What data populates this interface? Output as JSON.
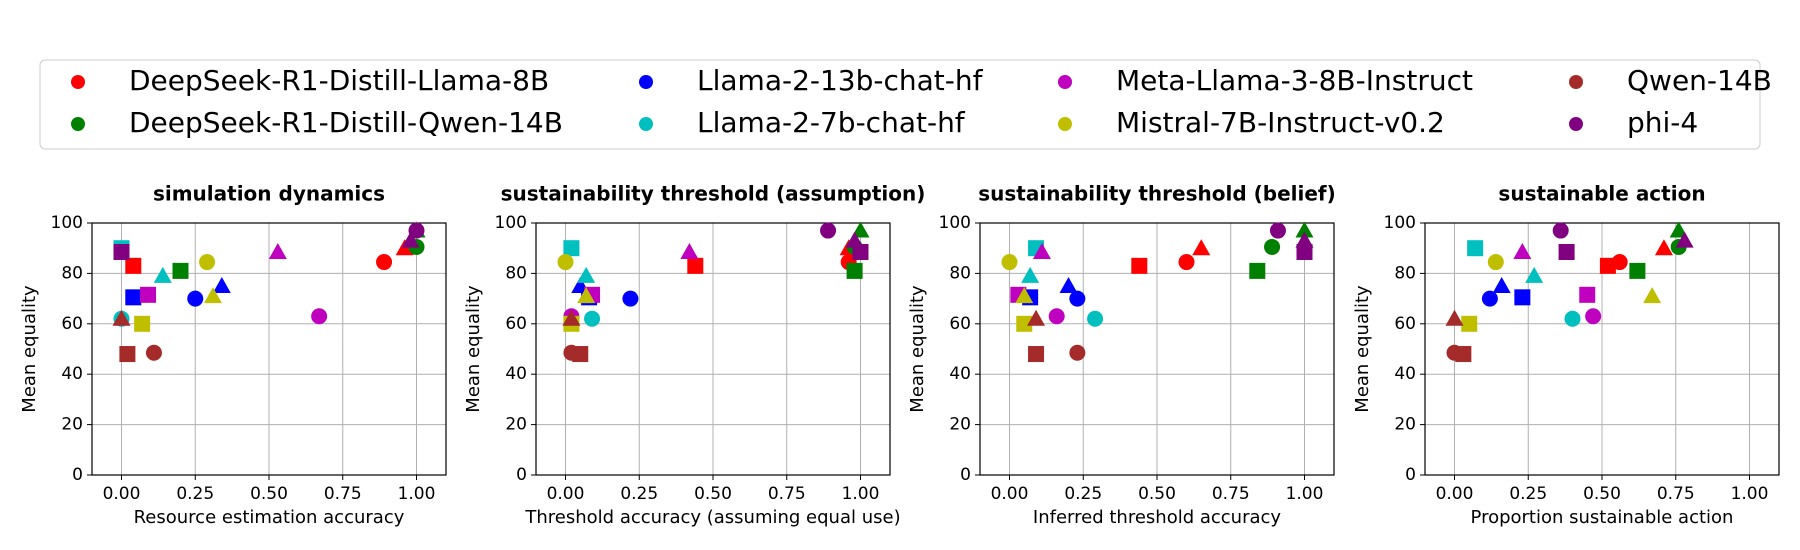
{
  "models": [
    {
      "name": "DeepSeek-R1-Distill-Llama-8B",
      "color": "#ff0000"
    },
    {
      "name": "DeepSeek-R1-Distill-Qwen-14B",
      "color": "#008000"
    },
    {
      "name": "Llama-2-13b-chat-hf",
      "color": "#0000ff"
    },
    {
      "name": "Llama-2-7b-chat-hf",
      "color": "#00bfbf"
    },
    {
      "name": "Meta-Llama-3-8B-Instruct",
      "color": "#bf00bf"
    },
    {
      "name": "Mistral-7B-Instruct-v0.2",
      "color": "#bfbf00"
    },
    {
      "name": "Qwen-14B",
      "color": "#a52a2a"
    },
    {
      "name": "phi-4",
      "color": "#800080"
    }
  ],
  "markers": [
    "circle",
    "square",
    "triangle"
  ],
  "chart_data": [
    {
      "type": "scatter",
      "title": "simulation dynamics",
      "x_label": "Resource estimation accuracy",
      "y_label": "Mean equality",
      "xlim": [
        -0.1,
        1.1
      ],
      "ylim": [
        0,
        100
      ],
      "grid": true,
      "xticks": [
        {
          "value": 0,
          "label": "0.00"
        },
        {
          "value": 0.25,
          "label": "0.25"
        },
        {
          "value": 0.5,
          "label": "0.50"
        },
        {
          "value": 0.75,
          "label": "0.75"
        },
        {
          "value": 1,
          "label": "1.00"
        }
      ],
      "yticks": [
        0,
        20,
        40,
        60,
        80,
        100
      ],
      "series": [
        {
          "x": [
            0.89,
            0.04,
            0.96
          ],
          "values": [
            84.5,
            83,
            90
          ]
        },
        {
          "x": [
            1.0,
            0.2,
            1.0
          ],
          "values": [
            90.5,
            81,
            97
          ]
        },
        {
          "x": [
            0.25,
            0.04,
            0.34
          ],
          "values": [
            70,
            70.5,
            75
          ]
        },
        {
          "x": [
            0.0,
            0.0,
            0.14
          ],
          "values": [
            62,
            90,
            79
          ]
        },
        {
          "x": [
            0.67,
            0.09,
            0.53
          ],
          "values": [
            63,
            71.5,
            88.5
          ]
        },
        {
          "x": [
            0.29,
            0.07,
            0.31
          ],
          "values": [
            84.5,
            60,
            71
          ]
        },
        {
          "x": [
            0.11,
            0.02,
            0.0
          ],
          "values": [
            48.5,
            48,
            62
          ]
        },
        {
          "x": [
            1.0,
            0.0,
            0.98
          ],
          "values": [
            97,
            88.5,
            93
          ]
        }
      ]
    },
    {
      "type": "scatter",
      "title": "sustainability threshold (assumption)",
      "x_label": "Threshold accuracy (assuming equal use)",
      "y_label": "Mean equality",
      "xlim": [
        -0.1,
        1.1
      ],
      "ylim": [
        0,
        100
      ],
      "grid": true,
      "xticks": [
        {
          "value": 0,
          "label": "0.00"
        },
        {
          "value": 0.25,
          "label": "0.25"
        },
        {
          "value": 0.5,
          "label": "0.50"
        },
        {
          "value": 0.75,
          "label": "0.75"
        },
        {
          "value": 1,
          "label": "1.00"
        }
      ],
      "yticks": [
        0,
        20,
        40,
        60,
        80,
        100
      ],
      "series": [
        {
          "x": [
            0.96,
            0.44,
            0.96
          ],
          "values": [
            84.5,
            83,
            90
          ]
        },
        {
          "x": [
            0.98,
            0.98,
            1.0
          ],
          "values": [
            90.5,
            81,
            97
          ]
        },
        {
          "x": [
            0.22,
            0.08,
            0.05
          ],
          "values": [
            70,
            70.5,
            75
          ]
        },
        {
          "x": [
            0.09,
            0.02,
            0.07
          ],
          "values": [
            62,
            90,
            79
          ]
        },
        {
          "x": [
            0.02,
            0.09,
            0.42
          ],
          "values": [
            63,
            71.5,
            88.5
          ]
        },
        {
          "x": [
            0.0,
            0.02,
            0.07
          ],
          "values": [
            84.5,
            60,
            71
          ]
        },
        {
          "x": [
            0.02,
            0.05,
            0.02
          ],
          "values": [
            48.5,
            48,
            62
          ]
        },
        {
          "x": [
            0.89,
            1.0,
            0.98
          ],
          "values": [
            97,
            88.5,
            93
          ]
        }
      ]
    },
    {
      "type": "scatter",
      "title": "sustainability threshold (belief)",
      "x_label": "Inferred threshold accuracy",
      "y_label": "Mean equality",
      "xlim": [
        -0.1,
        1.1
      ],
      "ylim": [
        0,
        100
      ],
      "grid": true,
      "xticks": [
        {
          "value": 0,
          "label": "0.00"
        },
        {
          "value": 0.25,
          "label": "0.25"
        },
        {
          "value": 0.5,
          "label": "0.50"
        },
        {
          "value": 0.75,
          "label": "0.75"
        },
        {
          "value": 1,
          "label": "1.00"
        }
      ],
      "yticks": [
        0,
        20,
        40,
        60,
        80,
        100
      ],
      "series": [
        {
          "x": [
            0.6,
            0.44,
            0.65
          ],
          "values": [
            84.5,
            83,
            90
          ]
        },
        {
          "x": [
            0.89,
            0.84,
            1.0
          ],
          "values": [
            90.5,
            81,
            97
          ]
        },
        {
          "x": [
            0.23,
            0.07,
            0.2
          ],
          "values": [
            70,
            70.5,
            75
          ]
        },
        {
          "x": [
            0.29,
            0.09,
            0.07
          ],
          "values": [
            62,
            90,
            79
          ]
        },
        {
          "x": [
            0.16,
            0.03,
            0.11
          ],
          "values": [
            63,
            71.5,
            88.5
          ]
        },
        {
          "x": [
            0.0,
            0.05,
            0.05
          ],
          "values": [
            84.5,
            60,
            71
          ]
        },
        {
          "x": [
            0.23,
            0.09,
            0.09
          ],
          "values": [
            48.5,
            48,
            62
          ]
        },
        {
          "x": [
            0.91,
            1.0,
            1.0
          ],
          "values": [
            97,
            88.5,
            93
          ]
        }
      ]
    },
    {
      "type": "scatter",
      "title": "sustainable action",
      "x_label": "Proportion sustainable action",
      "y_label": "Mean equality",
      "xlim": [
        -0.1,
        1.1
      ],
      "ylim": [
        0,
        100
      ],
      "grid": true,
      "xticks": [
        {
          "value": 0,
          "label": "0.00"
        },
        {
          "value": 0.25,
          "label": "0.25"
        },
        {
          "value": 0.5,
          "label": "0.50"
        },
        {
          "value": 0.75,
          "label": "0.75"
        },
        {
          "value": 1,
          "label": "1.00"
        }
      ],
      "yticks": [
        0,
        20,
        40,
        60,
        80,
        100
      ],
      "series": [
        {
          "x": [
            0.56,
            0.52,
            0.71
          ],
          "values": [
            84.5,
            83,
            90
          ]
        },
        {
          "x": [
            0.76,
            0.62,
            0.76
          ],
          "values": [
            90.5,
            81,
            97
          ]
        },
        {
          "x": [
            0.12,
            0.23,
            0.16
          ],
          "values": [
            70,
            70.5,
            75
          ]
        },
        {
          "x": [
            0.4,
            0.07,
            0.27
          ],
          "values": [
            62,
            90,
            79
          ]
        },
        {
          "x": [
            0.47,
            0.45,
            0.23
          ],
          "values": [
            63,
            71.5,
            88.5
          ]
        },
        {
          "x": [
            0.14,
            0.05,
            0.67
          ],
          "values": [
            84.5,
            60,
            71
          ]
        },
        {
          "x": [
            0.0,
            0.03,
            0.0
          ],
          "values": [
            48.5,
            48,
            62
          ]
        },
        {
          "x": [
            0.36,
            0.38,
            0.78
          ],
          "values": [
            97,
            88.5,
            93
          ]
        }
      ]
    }
  ]
}
